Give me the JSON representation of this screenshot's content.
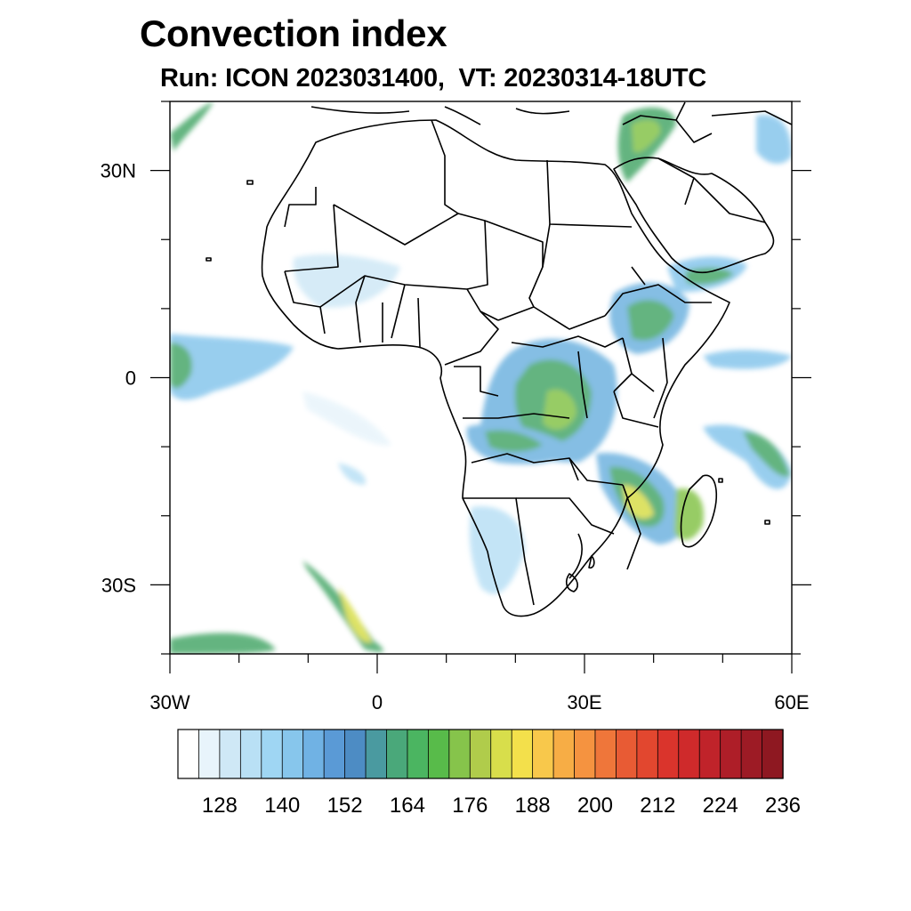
{
  "title": "Convection index",
  "subtitle": "Run: ICON 2023031400,  VT: 20230314-18UTC",
  "map": {
    "region": "Africa",
    "lon_range": [
      -30,
      60
    ],
    "lat_range": [
      -40,
      40
    ],
    "x_ticks": [
      {
        "value": -30,
        "label": "30W"
      },
      {
        "value": 0,
        "label": "0"
      },
      {
        "value": 30,
        "label": "30E"
      },
      {
        "value": 60,
        "label": "60E"
      }
    ],
    "y_ticks": [
      {
        "value": 30,
        "label": "30N"
      },
      {
        "value": 0,
        "label": "0"
      },
      {
        "value": -30,
        "label": "30S"
      }
    ],
    "field_color_low": "#6fb3e0",
    "field_color_mid": "#4aa86a",
    "field_color_high": "#e8d84a",
    "coast_color": "#000000"
  },
  "colorbar": {
    "colors": [
      "#ffffff",
      "#e8f4fb",
      "#cfe8f6",
      "#b9e0f5",
      "#9fd6f3",
      "#87c6ec",
      "#70b2e4",
      "#5a9ad6",
      "#4d8cc4",
      "#4a9aa0",
      "#4aa87a",
      "#4bb561",
      "#58bb4a",
      "#86c44b",
      "#b0cc4b",
      "#d8de4b",
      "#f3e04b",
      "#f8c84b",
      "#f7ad45",
      "#f59340",
      "#ef763a",
      "#e85b34",
      "#e2472f",
      "#da342c",
      "#cf2a2b",
      "#c0232a",
      "#ae1e28",
      "#9d1b25",
      "#8e1821"
    ],
    "labels": [
      "128",
      "140",
      "152",
      "164",
      "176",
      "188",
      "200",
      "212",
      "224",
      "236"
    ]
  }
}
